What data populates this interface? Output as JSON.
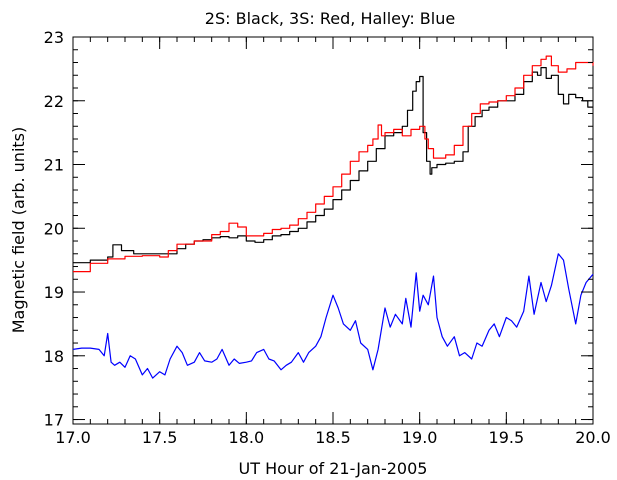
{
  "chart_data": {
    "type": "line",
    "title": "2S: Black, 3S: Red, Halley: Blue",
    "xlabel": "UT Hour of 21-Jan-2005",
    "ylabel": "Magnetic field (arb. units)",
    "xlim": [
      17.0,
      20.0
    ],
    "ylim": [
      16.93,
      23.0
    ],
    "xticks": [
      17.0,
      17.5,
      18.0,
      18.5,
      19.0,
      19.5,
      20.0
    ],
    "xtick_labels": [
      "17.0",
      "17.5",
      "18.0",
      "18.5",
      "19.0",
      "19.5",
      "20.0"
    ],
    "yticks": [
      17,
      18,
      19,
      20,
      21,
      22,
      23
    ],
    "ytick_labels": [
      "17",
      "18",
      "19",
      "20",
      "21",
      "22",
      "23"
    ],
    "grid": false,
    "legend": "none",
    "series": [
      {
        "color": "#000000",
        "step": true,
        "x": [
          17.0,
          17.1,
          17.2,
          17.23,
          17.28,
          17.35,
          17.45,
          17.55,
          17.6,
          17.65,
          17.7,
          17.75,
          17.8,
          17.85,
          17.9,
          17.95,
          18.0,
          18.05,
          18.1,
          18.15,
          18.2,
          18.25,
          18.3,
          18.35,
          18.4,
          18.45,
          18.5,
          18.55,
          18.6,
          18.65,
          18.7,
          18.75,
          18.8,
          18.85,
          18.9,
          18.93,
          18.96,
          18.98,
          19.0,
          19.02,
          19.04,
          19.06,
          19.07,
          19.1,
          19.15,
          19.2,
          19.25,
          19.28,
          19.32,
          19.36,
          19.4,
          19.45,
          19.5,
          19.55,
          19.6,
          19.65,
          19.68,
          19.7,
          19.73,
          19.76,
          19.8,
          19.83,
          19.86,
          19.9,
          19.94,
          19.97,
          20.0
        ],
        "values": [
          19.46,
          19.5,
          19.55,
          19.74,
          19.65,
          19.6,
          19.6,
          19.6,
          19.68,
          19.75,
          19.8,
          19.82,
          19.85,
          19.87,
          19.85,
          19.88,
          19.8,
          19.78,
          19.82,
          19.88,
          19.9,
          19.95,
          20.0,
          20.1,
          20.2,
          20.3,
          20.45,
          20.6,
          20.75,
          20.9,
          21.05,
          21.25,
          21.45,
          21.5,
          21.6,
          21.85,
          22.15,
          22.3,
          22.38,
          21.5,
          21.05,
          20.85,
          20.95,
          21.0,
          21.02,
          21.05,
          21.2,
          21.6,
          21.75,
          21.85,
          21.9,
          22.0,
          22.0,
          22.1,
          22.3,
          22.45,
          22.4,
          22.52,
          22.35,
          22.4,
          22.1,
          21.95,
          22.1,
          22.05,
          22.0,
          21.9,
          21.9
        ]
      },
      {
        "color": "#ff0000",
        "step": true,
        "x": [
          17.0,
          17.1,
          17.2,
          17.3,
          17.4,
          17.5,
          17.55,
          17.6,
          17.7,
          17.8,
          17.85,
          17.9,
          17.95,
          18.0,
          18.05,
          18.1,
          18.15,
          18.2,
          18.25,
          18.3,
          18.35,
          18.4,
          18.45,
          18.5,
          18.55,
          18.6,
          18.65,
          18.7,
          18.73,
          18.76,
          18.78,
          18.8,
          18.85,
          18.9,
          18.95,
          19.0,
          19.03,
          19.05,
          19.08,
          19.12,
          19.15,
          19.2,
          19.25,
          19.3,
          19.35,
          19.4,
          19.45,
          19.5,
          19.55,
          19.6,
          19.65,
          19.7,
          19.73,
          19.76,
          19.8,
          19.85,
          19.9,
          19.95,
          20.0
        ],
        "values": [
          19.32,
          19.45,
          19.52,
          19.56,
          19.57,
          19.55,
          19.65,
          19.75,
          19.8,
          19.9,
          19.95,
          20.08,
          20.02,
          19.88,
          19.88,
          19.92,
          19.98,
          20.0,
          20.05,
          20.15,
          20.25,
          20.38,
          20.5,
          20.65,
          20.85,
          21.05,
          21.2,
          21.3,
          21.4,
          21.62,
          21.45,
          21.5,
          21.55,
          21.45,
          21.55,
          21.6,
          21.4,
          21.25,
          21.1,
          21.1,
          21.15,
          21.3,
          21.6,
          21.8,
          21.95,
          21.98,
          22.0,
          22.08,
          22.2,
          22.4,
          22.55,
          22.65,
          22.7,
          22.55,
          22.45,
          22.5,
          22.6,
          22.6,
          22.55
        ]
      },
      {
        "color": "#0000ff",
        "step": false,
        "x": [
          17.0,
          17.05,
          17.1,
          17.15,
          17.18,
          17.2,
          17.22,
          17.24,
          17.27,
          17.3,
          17.33,
          17.36,
          17.4,
          17.43,
          17.46,
          17.5,
          17.53,
          17.56,
          17.6,
          17.63,
          17.66,
          17.7,
          17.73,
          17.76,
          17.8,
          17.83,
          17.86,
          17.9,
          17.93,
          17.96,
          18.0,
          18.03,
          18.06,
          18.1,
          18.13,
          18.16,
          18.2,
          18.23,
          18.26,
          18.3,
          18.33,
          18.36,
          18.4,
          18.43,
          18.46,
          18.5,
          18.53,
          18.56,
          18.6,
          18.63,
          18.66,
          18.7,
          18.73,
          18.76,
          18.8,
          18.83,
          18.86,
          18.9,
          18.92,
          18.95,
          18.98,
          19.0,
          19.02,
          19.05,
          19.08,
          19.1,
          19.13,
          19.16,
          19.2,
          19.23,
          19.26,
          19.3,
          19.33,
          19.36,
          19.4,
          19.43,
          19.46,
          19.5,
          19.53,
          19.56,
          19.6,
          19.63,
          19.66,
          19.7,
          19.73,
          19.76,
          19.8,
          19.83,
          19.86,
          19.9,
          19.93,
          19.96,
          20.0
        ],
        "values": [
          18.1,
          18.12,
          18.12,
          18.1,
          18.0,
          18.35,
          17.9,
          17.85,
          17.9,
          17.82,
          18.0,
          17.95,
          17.7,
          17.8,
          17.65,
          17.75,
          17.7,
          17.95,
          18.15,
          18.05,
          17.85,
          17.9,
          18.05,
          17.92,
          17.9,
          17.95,
          18.1,
          17.85,
          17.95,
          17.88,
          17.9,
          17.92,
          18.05,
          18.1,
          17.95,
          17.92,
          17.78,
          17.85,
          17.9,
          18.05,
          17.9,
          18.05,
          18.15,
          18.3,
          18.6,
          18.95,
          18.75,
          18.5,
          18.4,
          18.55,
          18.2,
          18.1,
          17.78,
          18.1,
          18.75,
          18.45,
          18.65,
          18.5,
          18.9,
          18.45,
          19.3,
          18.7,
          18.95,
          18.8,
          19.25,
          18.6,
          18.3,
          18.15,
          18.3,
          18.0,
          18.05,
          17.95,
          18.2,
          18.15,
          18.4,
          18.5,
          18.3,
          18.6,
          18.55,
          18.45,
          18.7,
          19.25,
          18.65,
          19.15,
          18.85,
          19.1,
          19.6,
          19.5,
          19.05,
          18.5,
          18.95,
          19.15,
          19.28
        ]
      }
    ]
  }
}
